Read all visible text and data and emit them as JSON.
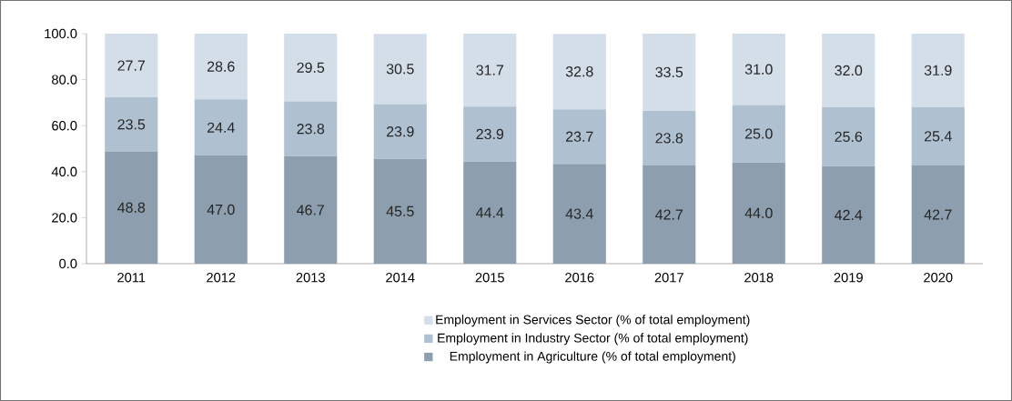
{
  "chart_data": {
    "type": "bar",
    "stacked": true,
    "categories": [
      "2011",
      "2012",
      "2013",
      "2014",
      "2015",
      "2016",
      "2017",
      "2018",
      "2019",
      "2020"
    ],
    "series": [
      {
        "name": "Employment in Agriculture (% of total employment)",
        "color": "#8d9eae",
        "values": [
          48.8,
          47.0,
          46.7,
          45.5,
          44.4,
          43.4,
          42.7,
          44.0,
          42.4,
          42.7
        ],
        "value_labels": [
          "48.8",
          "47.0",
          "46.7",
          "45.5",
          "44.4",
          "43.4",
          "42.7",
          "44.0",
          "42.4",
          "42.7"
        ]
      },
      {
        "name": "Employment in Industry Sector (% of total employment)",
        "color": "#afc0d1",
        "values": [
          23.5,
          24.4,
          23.8,
          23.9,
          23.9,
          23.7,
          23.8,
          25.0,
          25.6,
          25.4
        ],
        "value_labels": [
          "23.5",
          "24.4",
          "23.8",
          "23.9",
          "23.9",
          "23.7",
          "23.8",
          "25.0",
          "25.6",
          "25.4"
        ]
      },
      {
        "name": "Employment in Services Sector (% of total employment)",
        "color": "#d3dee8",
        "values": [
          27.7,
          28.6,
          29.5,
          30.5,
          31.7,
          32.8,
          33.5,
          31.0,
          32.0,
          31.9
        ],
        "value_labels": [
          "27.7",
          "28.6",
          "29.5",
          "30.5",
          "31.7",
          "32.8",
          "33.5",
          "31.0",
          "32.0",
          "31.9"
        ]
      }
    ],
    "ylim": [
      0,
      100
    ],
    "yticks": [
      {
        "value": 0,
        "label": "0.0"
      },
      {
        "value": 20,
        "label": "20.0"
      },
      {
        "value": 40,
        "label": "40.0"
      },
      {
        "value": 60,
        "label": "60.0"
      },
      {
        "value": 80,
        "label": "80.0"
      },
      {
        "value": 100,
        "label": "100.0"
      }
    ],
    "grid": false,
    "legend": "bottom"
  }
}
